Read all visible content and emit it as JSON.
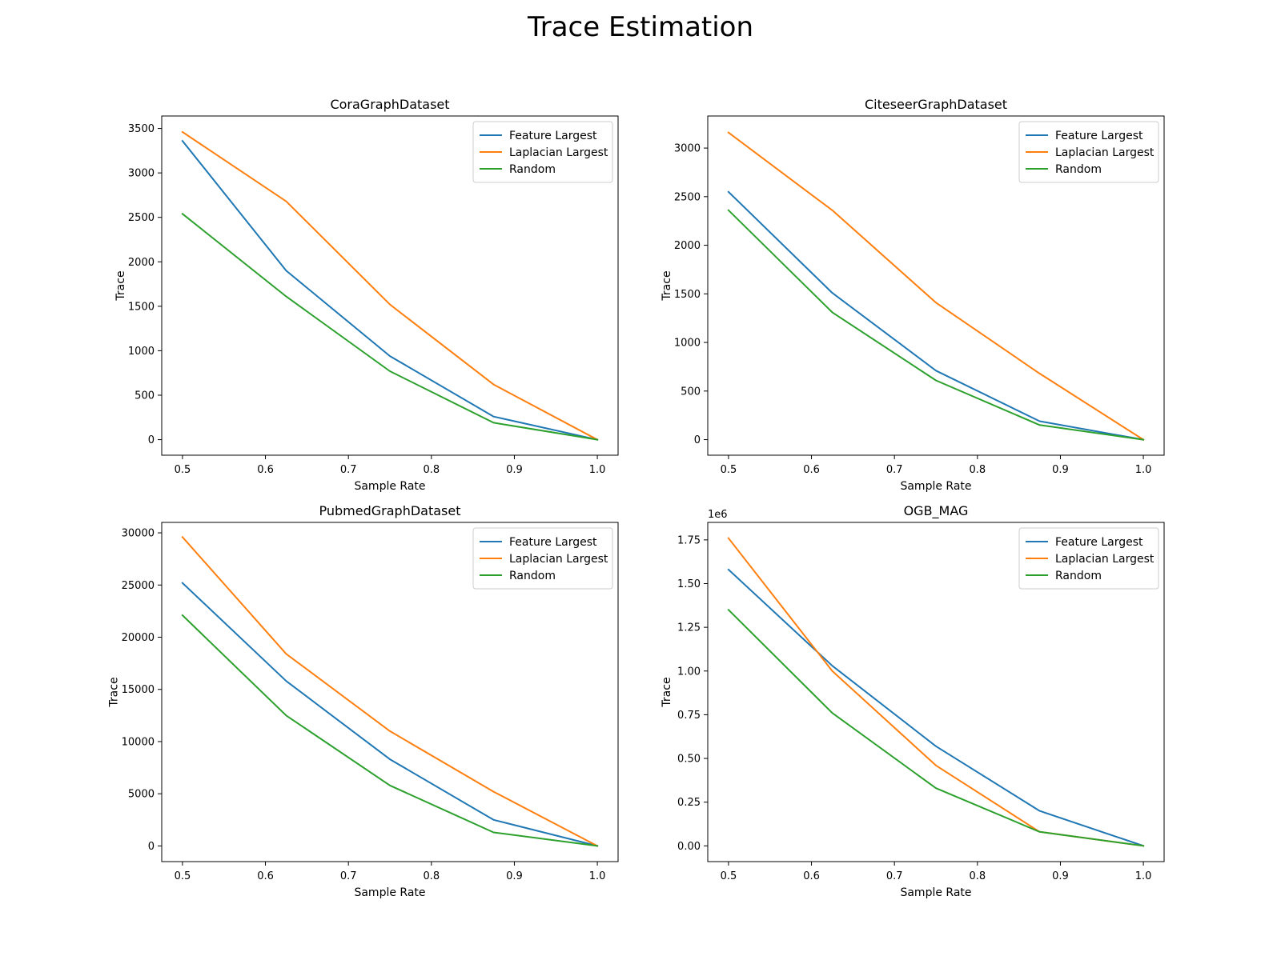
{
  "figure": {
    "title": "Trace Estimation"
  },
  "chart_data": [
    {
      "type": "line",
      "title": "CoraGraphDataset",
      "xlabel": "Sample Rate",
      "ylabel": "Trace",
      "x": [
        0.5,
        0.625,
        0.75,
        0.875,
        1.0
      ],
      "xticks": [
        0.5,
        0.6,
        0.7,
        0.8,
        0.9,
        1.0
      ],
      "xtick_labels": [
        "0.5",
        "0.6",
        "0.7",
        "0.8",
        "0.9",
        "1.0"
      ],
      "yticks": [
        0,
        500,
        1000,
        1500,
        2000,
        2500,
        3000,
        3500
      ],
      "ytick_labels": [
        "0",
        "500",
        "1000",
        "1500",
        "2000",
        "2500",
        "3000",
        "3500"
      ],
      "xlim": [
        0.475,
        1.025
      ],
      "ylim": [
        -175,
        3640
      ],
      "offset_label": "",
      "legend": "top-right",
      "series": [
        {
          "name": "Feature Largest",
          "color": "#1f77b4",
          "values": [
            3360,
            1900,
            940,
            260,
            0
          ]
        },
        {
          "name": "Laplacian Largest",
          "color": "#ff7f0e",
          "values": [
            3460,
            2680,
            1520,
            620,
            0
          ]
        },
        {
          "name": "Random",
          "color": "#2ca02c",
          "values": [
            2540,
            1610,
            770,
            190,
            0
          ]
        }
      ]
    },
    {
      "type": "line",
      "title": "CiteseerGraphDataset",
      "xlabel": "Sample Rate",
      "ylabel": "Trace",
      "x": [
        0.5,
        0.625,
        0.75,
        0.875,
        1.0
      ],
      "xticks": [
        0.5,
        0.6,
        0.7,
        0.8,
        0.9,
        1.0
      ],
      "xtick_labels": [
        "0.5",
        "0.6",
        "0.7",
        "0.8",
        "0.9",
        "1.0"
      ],
      "yticks": [
        0,
        500,
        1000,
        1500,
        2000,
        2500,
        3000
      ],
      "ytick_labels": [
        "0",
        "500",
        "1000",
        "1500",
        "2000",
        "2500",
        "3000"
      ],
      "xlim": [
        0.475,
        1.025
      ],
      "ylim": [
        -160,
        3330
      ],
      "offset_label": "",
      "legend": "top-right",
      "series": [
        {
          "name": "Feature Largest",
          "color": "#1f77b4",
          "values": [
            2550,
            1510,
            710,
            190,
            0
          ]
        },
        {
          "name": "Laplacian Largest",
          "color": "#ff7f0e",
          "values": [
            3160,
            2360,
            1410,
            680,
            0
          ]
        },
        {
          "name": "Random",
          "color": "#2ca02c",
          "values": [
            2360,
            1310,
            610,
            150,
            0
          ]
        }
      ]
    },
    {
      "type": "line",
      "title": "PubmedGraphDataset",
      "xlabel": "Sample Rate",
      "ylabel": "Trace",
      "x": [
        0.5,
        0.625,
        0.75,
        0.875,
        1.0
      ],
      "xticks": [
        0.5,
        0.6,
        0.7,
        0.8,
        0.9,
        1.0
      ],
      "xtick_labels": [
        "0.5",
        "0.6",
        "0.7",
        "0.8",
        "0.9",
        "1.0"
      ],
      "yticks": [
        0,
        5000,
        10000,
        15000,
        20000,
        25000,
        30000
      ],
      "ytick_labels": [
        "0",
        "5000",
        "10000",
        "15000",
        "20000",
        "25000",
        "30000"
      ],
      "xlim": [
        0.475,
        1.025
      ],
      "ylim": [
        -1500,
        31000
      ],
      "offset_label": "",
      "legend": "top-right",
      "series": [
        {
          "name": "Feature Largest",
          "color": "#1f77b4",
          "values": [
            25200,
            15800,
            8300,
            2500,
            0
          ]
        },
        {
          "name": "Laplacian Largest",
          "color": "#ff7f0e",
          "values": [
            29600,
            18400,
            11000,
            5200,
            0
          ]
        },
        {
          "name": "Random",
          "color": "#2ca02c",
          "values": [
            22100,
            12500,
            5800,
            1300,
            0
          ]
        }
      ]
    },
    {
      "type": "line",
      "title": "OGB_MAG",
      "xlabel": "Sample Rate",
      "ylabel": "Trace",
      "x": [
        0.5,
        0.625,
        0.75,
        0.875,
        1.0
      ],
      "xticks": [
        0.5,
        0.6,
        0.7,
        0.8,
        0.9,
        1.0
      ],
      "xtick_labels": [
        "0.5",
        "0.6",
        "0.7",
        "0.8",
        "0.9",
        "1.0"
      ],
      "yticks": [
        0,
        0.25,
        0.5,
        0.75,
        1.0,
        1.25,
        1.5,
        1.75
      ],
      "ytick_labels": [
        "0.00",
        "0.25",
        "0.50",
        "0.75",
        "1.00",
        "1.25",
        "1.50",
        "1.75"
      ],
      "xlim": [
        0.475,
        1.025
      ],
      "ylim": [
        -0.09,
        1.85
      ],
      "offset_label": "1e6",
      "legend": "top-right",
      "series": [
        {
          "name": "Feature Largest",
          "color": "#1f77b4",
          "values": [
            1.58,
            1.03,
            0.57,
            0.2,
            0
          ]
        },
        {
          "name": "Laplacian Largest",
          "color": "#ff7f0e",
          "values": [
            1.76,
            1.0,
            0.46,
            0.08,
            0
          ]
        },
        {
          "name": "Random",
          "color": "#2ca02c",
          "values": [
            1.35,
            0.76,
            0.33,
            0.08,
            0
          ]
        }
      ]
    }
  ]
}
